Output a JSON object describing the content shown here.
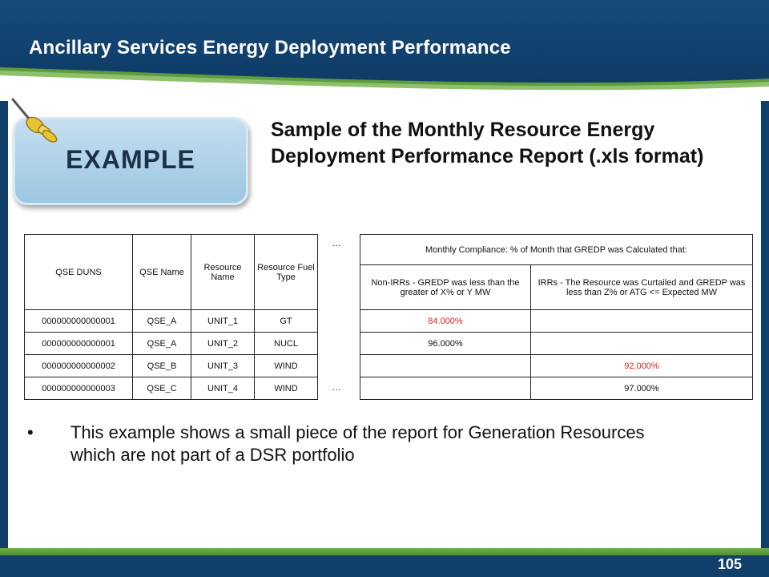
{
  "header": {
    "title": "Ancillary Services Energy Deployment Performance"
  },
  "badge": {
    "label": "EXAMPLE"
  },
  "heading": "Sample of the Monthly Resource Energy Deployment Performance Report (.xls format)",
  "table": {
    "col_qse_duns": "QSE DUNS",
    "col_qse_name": "QSE Name",
    "col_resource_name": "Resource Name",
    "col_fuel_type": "Resource Fuel Type",
    "ellipsis": "…",
    "compliance_header": "Monthly Compliance: % of Month that GREDP was Calculated that:",
    "col_non_irr": "Non-IRRs - GREDP was less than the greater of X% or Y MW",
    "col_irr": "IRRs - The Resource was Curtailed and GREDP was less than Z% or ATG <= Expected MW",
    "rows": [
      {
        "duns": "000000000000001",
        "qse": "QSE_A",
        "resource": "UNIT_1",
        "fuel": "GT",
        "non_irr": "84.000%",
        "irr": ""
      },
      {
        "duns": "000000000000001",
        "qse": "QSE_A",
        "resource": "UNIT_2",
        "fuel": "NUCL",
        "non_irr": "96.000%",
        "irr": ""
      },
      {
        "duns": "000000000000002",
        "qse": "QSE_B",
        "resource": "UNIT_3",
        "fuel": "WIND",
        "non_irr": "",
        "irr": "92.000%"
      },
      {
        "duns": "000000000000003",
        "qse": "QSE_C",
        "resource": "UNIT_4",
        "fuel": "WIND",
        "non_irr": "",
        "irr": "97.000%"
      }
    ]
  },
  "bullet": {
    "symbol": "•",
    "text": "This example shows a small piece of the report for Generation Resources which are not part of a DSR portfolio"
  },
  "footer": {
    "page_number": "105"
  },
  "colors": {
    "header": "#103f6c",
    "accent_green": "#5a9a3a",
    "badge": "#a9cde6",
    "red_value": "#e02020"
  }
}
